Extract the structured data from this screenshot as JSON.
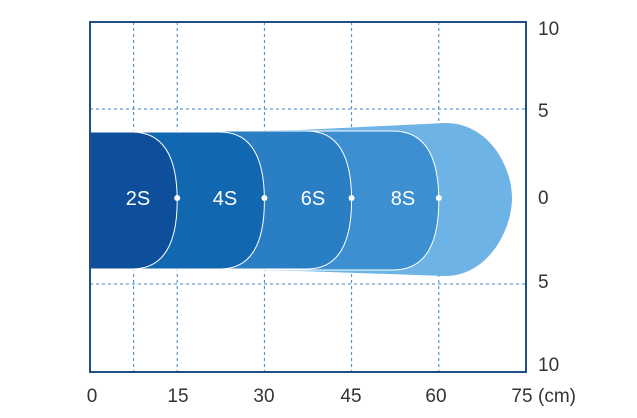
{
  "chart_data": {
    "type": "area",
    "x_ticks": [
      "0",
      "15",
      "30",
      "45",
      "60",
      "75"
    ],
    "x_unit": "(cm)",
    "y_ticks_right": [
      "10",
      "5",
      "0",
      "5",
      "10"
    ],
    "zones": [
      {
        "label": "2S",
        "reach_cm": 15,
        "color": "#0d4f9b"
      },
      {
        "label": "4S",
        "reach_cm": 30,
        "color": "#1267b1"
      },
      {
        "label": "6S",
        "reach_cm": 45,
        "color": "#2a7ec3"
      },
      {
        "label": "8S",
        "reach_cm": 60,
        "color": "#3c8fd0"
      },
      {
        "label": "",
        "reach_cm": 75,
        "color": "#6db3e5"
      }
    ],
    "colors": {
      "axis": "#1f4f86",
      "grid": "#3a86c8",
      "text": "#333333"
    },
    "grid": true
  }
}
